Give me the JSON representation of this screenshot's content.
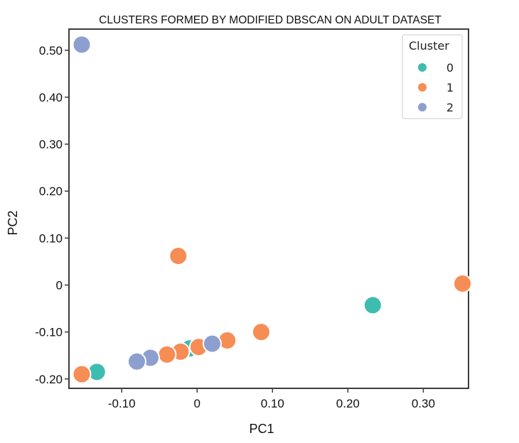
{
  "chart_data": {
    "type": "scatter",
    "title": "CLUSTERS FORMED BY MODIFIED DBSCAN ON ADULT DATASET",
    "xlabel": "PC1",
    "ylabel": "PC2",
    "xlim": [
      -0.17,
      0.36
    ],
    "ylim": [
      -0.22,
      0.545
    ],
    "x_ticks": [
      {
        "value": -0.1,
        "label": "-0.10"
      },
      {
        "value": 0,
        "label": "0"
      },
      {
        "value": 0.1,
        "label": "0.10"
      },
      {
        "value": 0.2,
        "label": "0.20"
      },
      {
        "value": 0.3,
        "label": "0.30"
      }
    ],
    "y_ticks": [
      {
        "value": 0.5,
        "label": "0.50"
      },
      {
        "value": 0.4,
        "label": "0.40"
      },
      {
        "value": 0.3,
        "label": "0.30"
      },
      {
        "value": 0.2,
        "label": "0.20"
      },
      {
        "value": 0.1,
        "label": "0.10"
      },
      {
        "value": 0,
        "label": "0"
      },
      {
        "value": -0.1,
        "label": "-0.10"
      },
      {
        "value": -0.2,
        "label": "-0.20"
      }
    ],
    "grid": false,
    "legend": {
      "title": "Cluster",
      "placement": "top-right"
    },
    "series": [
      {
        "name": "0",
        "color": "#3dbcb0",
        "points": [
          {
            "x": -0.133,
            "y": -0.185
          },
          {
            "x": -0.01,
            "y": -0.135
          },
          {
            "x": 0.233,
            "y": -0.043
          }
        ]
      },
      {
        "name": "1",
        "color": "#f68d55",
        "points": [
          {
            "x": -0.025,
            "y": 0.062
          },
          {
            "x": 0.352,
            "y": 0.003
          },
          {
            "x": 0.085,
            "y": -0.1
          },
          {
            "x": 0.04,
            "y": -0.118
          },
          {
            "x": 0.002,
            "y": -0.132
          },
          {
            "x": -0.022,
            "y": -0.142
          },
          {
            "x": -0.04,
            "y": -0.148
          },
          {
            "x": -0.153,
            "y": -0.19
          }
        ]
      },
      {
        "name": "2",
        "color": "#8d9fcf",
        "points": [
          {
            "x": -0.153,
            "y": 0.512
          },
          {
            "x": 0.02,
            "y": -0.125
          },
          {
            "x": -0.062,
            "y": -0.155
          },
          {
            "x": -0.08,
            "y": -0.163
          }
        ]
      }
    ]
  }
}
